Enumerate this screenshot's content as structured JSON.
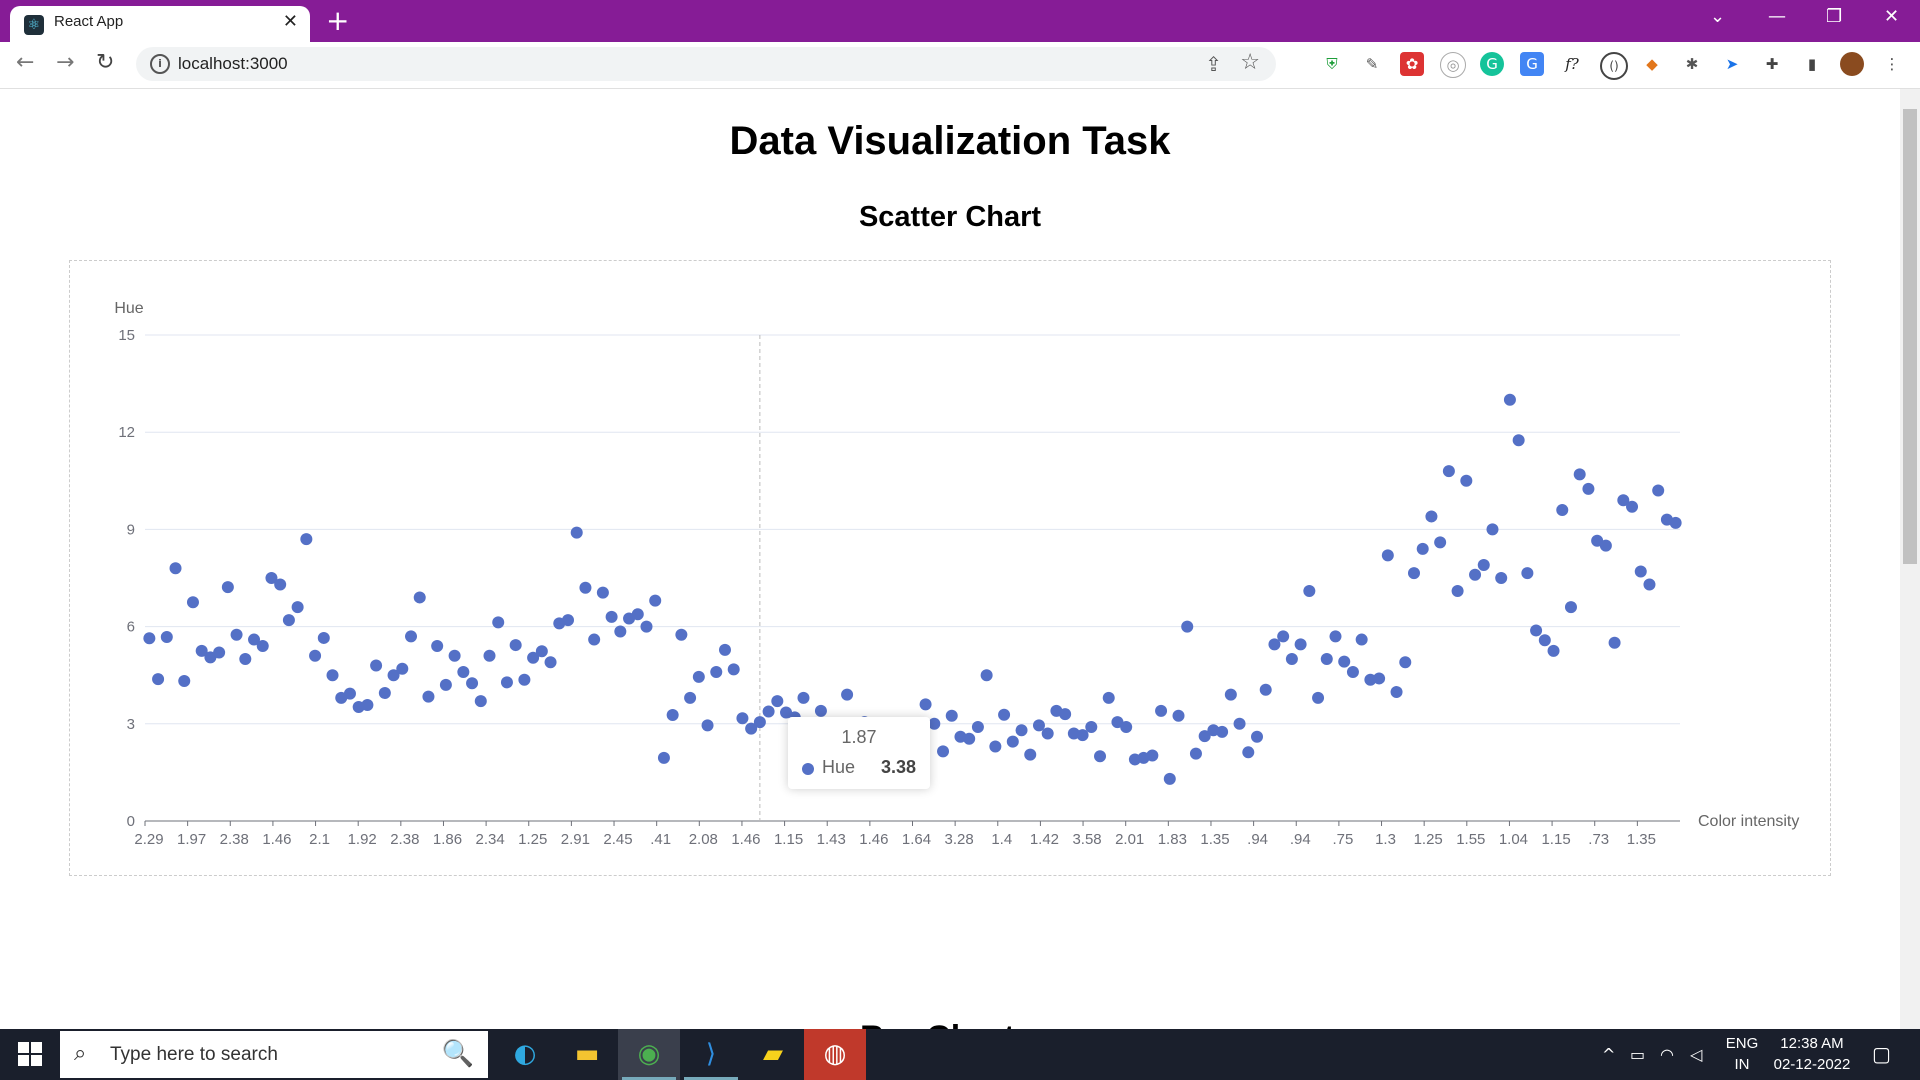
{
  "browser": {
    "tab_title": "React App",
    "url": "localhost:3000",
    "extensions": [
      "shield-icon",
      "dropper-icon",
      "puzzle-red-icon",
      "circle-icon",
      "grammarly-icon",
      "translate-icon",
      "f-icon",
      "code-icon",
      "fox-icon",
      "bug-icon",
      "send-icon",
      "extensions-icon",
      "sidepanel-icon",
      "profile-avatar",
      "menu-icon"
    ]
  },
  "page": {
    "title": "Data Visualization Task",
    "chart_title": "Scatter Chart",
    "next_heading": "Bar Chart"
  },
  "tooltip": {
    "x": "1.87",
    "series": "Hue",
    "value": "3.38"
  },
  "chart_data": {
    "type": "scatter",
    "ylabel": "Hue",
    "xlabel": "Color intensity",
    "ylim": [
      0,
      15
    ],
    "yticks": [
      "0",
      "3",
      "6",
      "9",
      "12",
      "15"
    ],
    "xtick_labels": [
      "2.29",
      "1.97",
      "2.38",
      "1.46",
      "2.1",
      "1.92",
      "2.38",
      "1.86",
      "2.34",
      "1.25",
      "2.91",
      "2.45",
      ".41",
      "2.08",
      "1.46",
      "1.15",
      "1.43",
      "1.46",
      "1.64",
      "3.28",
      "1.4",
      "1.42",
      "3.58",
      "2.01",
      "1.83",
      "1.35",
      ".94",
      ".94",
      ".75",
      "1.3",
      "1.25",
      "1.55",
      "1.04",
      "1.15",
      ".73",
      "1.35"
    ],
    "color": "#5470c6",
    "series": [
      {
        "name": "Hue",
        "values": [
          5.64,
          4.38,
          5.68,
          7.8,
          4.32,
          6.75,
          5.25,
          5.05,
          5.2,
          7.22,
          5.75,
          5.0,
          5.6,
          5.4,
          7.5,
          7.3,
          6.2,
          6.6,
          8.7,
          5.1,
          5.65,
          4.5,
          3.8,
          3.93,
          3.52,
          3.58,
          4.8,
          3.95,
          4.5,
          4.7,
          5.7,
          6.9,
          3.84,
          5.4,
          4.2,
          5.1,
          4.6,
          4.25,
          3.7,
          5.1,
          6.13,
          4.28,
          5.43,
          4.36,
          5.04,
          5.24,
          4.9,
          6.1,
          6.2,
          8.9,
          7.2,
          5.6,
          7.05,
          6.3,
          5.85,
          6.25,
          6.38,
          6.0,
          6.8,
          1.95,
          3.27,
          5.75,
          3.8,
          4.45,
          2.95,
          4.6,
          5.28,
          4.68,
          3.17,
          2.85,
          3.05,
          3.38,
          3.7,
          3.35,
          3.2,
          3.8,
          2.65,
          3.4,
          2.6,
          2.5,
          3.9,
          2.2,
          3.05,
          2.65,
          2.5,
          2.6,
          2.8,
          1.74,
          2.44,
          3.6,
          3.0,
          2.15,
          3.25,
          2.6,
          2.54,
          2.9,
          4.5,
          2.3,
          3.28,
          2.45,
          2.8,
          2.05,
          2.95,
          2.7,
          3.4,
          3.3,
          2.7,
          2.65,
          2.9,
          2.0,
          3.8,
          3.05,
          2.9,
          1.9,
          1.95,
          2.02,
          3.4,
          1.3,
          3.25,
          6.0,
          2.08,
          2.62,
          2.8,
          2.75,
          3.9,
          3.0,
          2.12,
          2.6,
          4.05,
          5.45,
          5.7,
          5.0,
          5.45,
          7.1,
          3.8,
          5.0,
          5.7,
          4.92,
          4.6,
          5.6,
          4.36,
          4.4,
          8.2,
          3.98,
          4.9,
          7.65,
          8.4,
          9.4,
          8.6,
          10.8,
          7.1,
          10.5,
          7.6,
          7.9,
          9.0,
          7.5,
          13.0,
          11.75,
          7.65,
          5.88,
          5.58,
          5.25,
          9.6,
          6.6,
          10.7,
          10.25,
          8.65,
          8.5,
          5.5,
          9.9,
          9.7,
          7.7,
          7.3,
          10.2,
          9.3,
          9.2
        ]
      }
    ]
  },
  "taskbar": {
    "search_placeholder": "Type here to search",
    "lang": "ENG",
    "region": "IN",
    "time": "12:38 AM",
    "date": "02-12-2022"
  }
}
